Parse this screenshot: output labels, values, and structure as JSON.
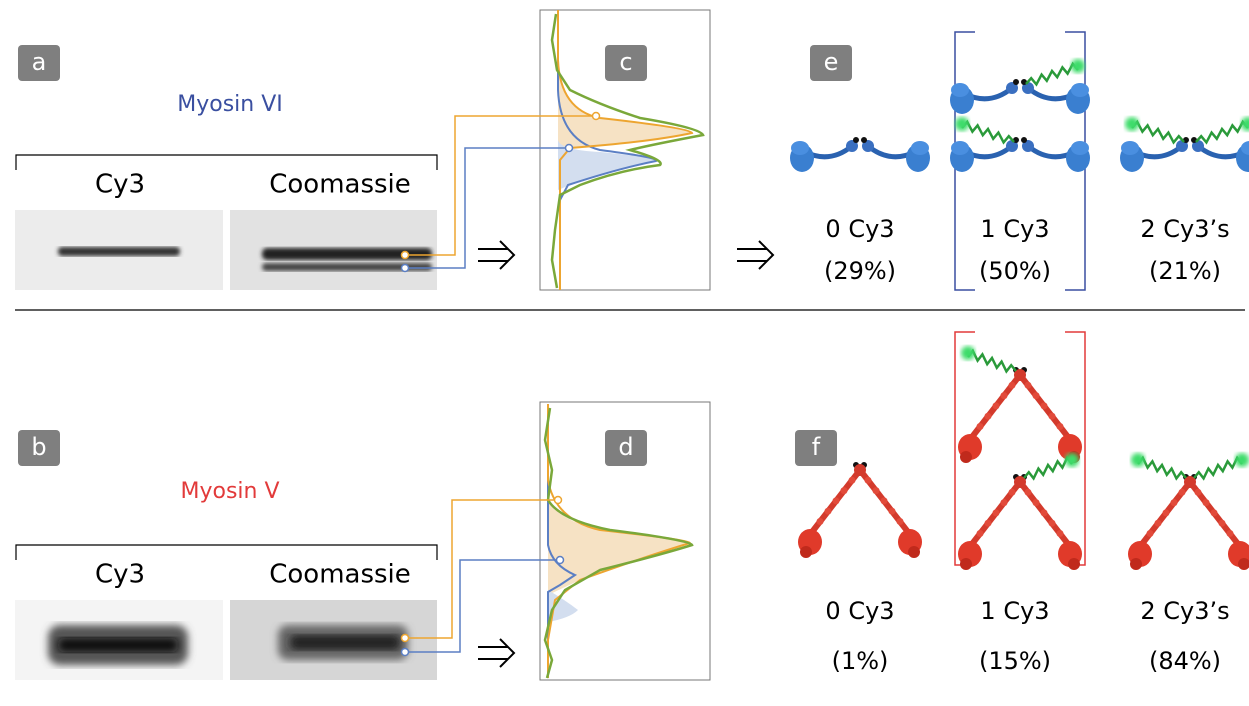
{
  "top": {
    "panel_label": "a",
    "title": "Myosin VI",
    "lanes": [
      "Cy3",
      "Coomassie"
    ],
    "profile_label": "c",
    "species_label": "e",
    "species": [
      {
        "label": "0 Cy3",
        "fraction": "(29%)"
      },
      {
        "label": "1 Cy3",
        "fraction": "(50%)"
      },
      {
        "label": "2 Cy3’s",
        "fraction": "(21%)"
      }
    ]
  },
  "bottom": {
    "panel_label": "b",
    "title": "Myosin V",
    "lanes": [
      "Cy3",
      "Coomassie"
    ],
    "profile_label": "d",
    "species_label": "f",
    "species": [
      {
        "label": "0 Cy3",
        "fraction": "(1%)"
      },
      {
        "label": "1 Cy3",
        "fraction": "(15%)"
      },
      {
        "label": "2 Cy3’s",
        "fraction": "(84%)"
      }
    ]
  }
}
